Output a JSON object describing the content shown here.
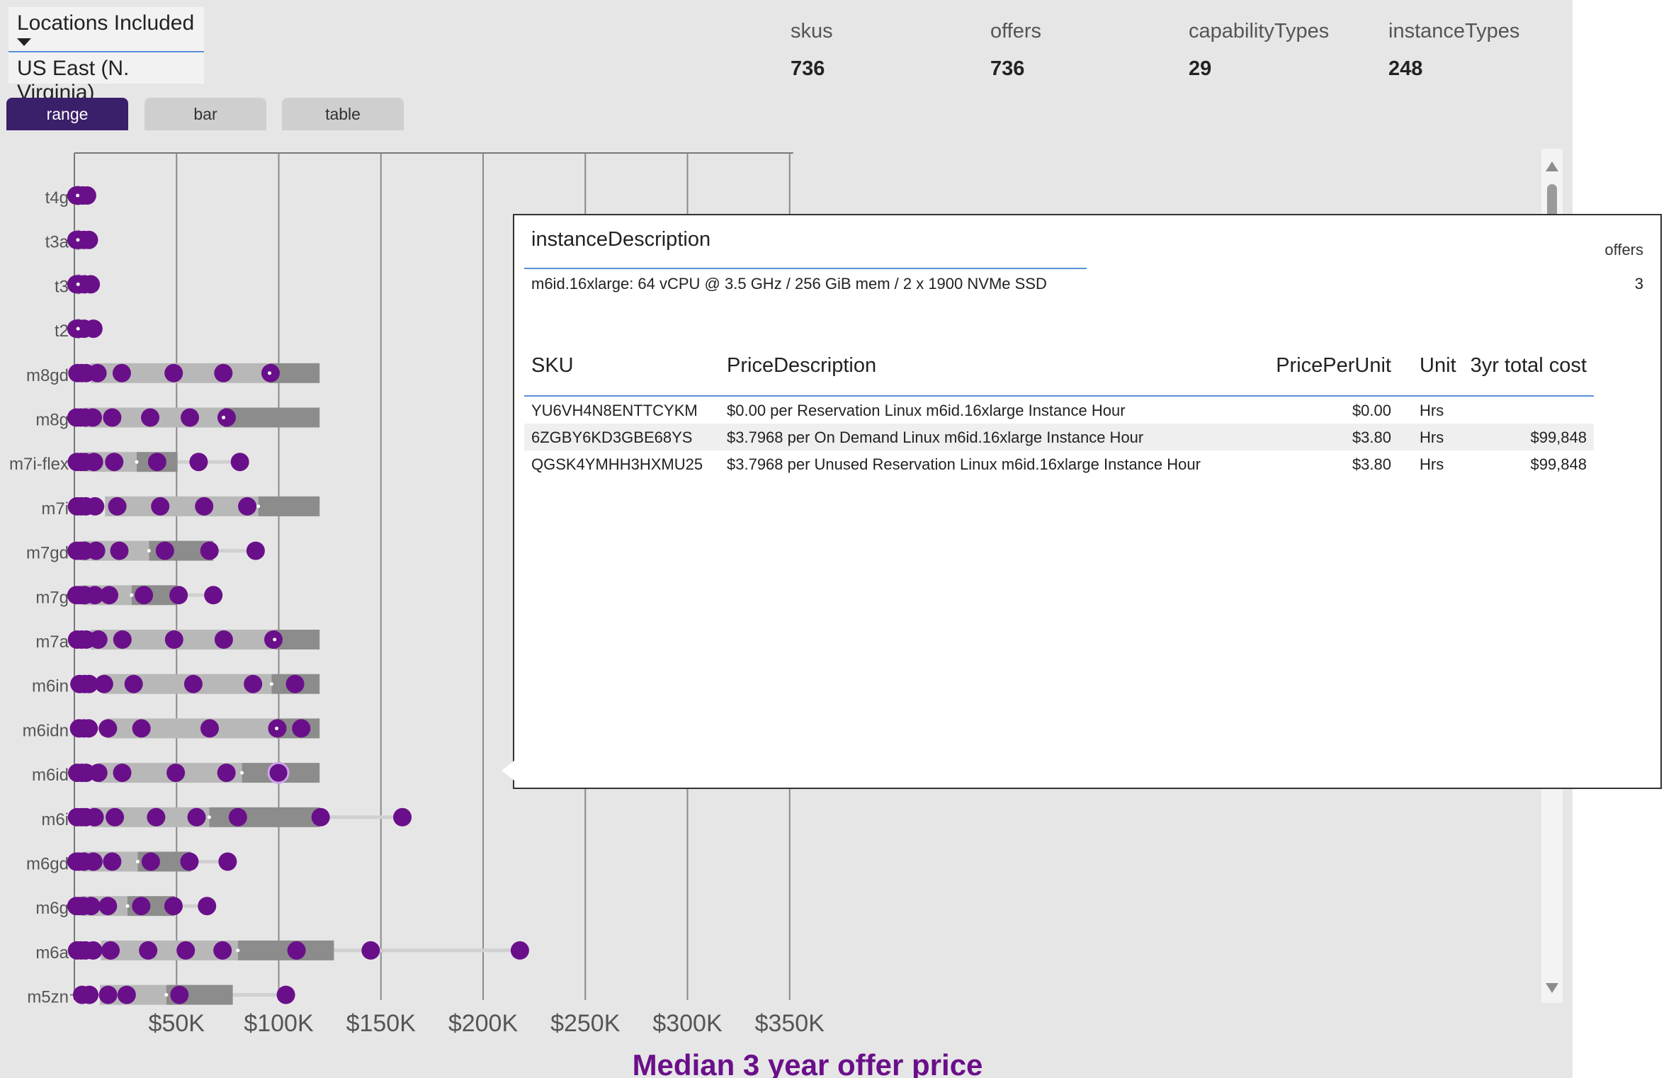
{
  "filter": {
    "title": "Locations Included",
    "value": "US East (N. Virginia)"
  },
  "stats": [
    {
      "label": "skus",
      "value": "736"
    },
    {
      "label": "offers",
      "value": "736"
    },
    {
      "label": "capabilityTypes",
      "value": "29"
    },
    {
      "label": "instanceTypes",
      "value": "248"
    }
  ],
  "tabs": [
    {
      "label": "range",
      "active": true
    },
    {
      "label": "bar",
      "active": false
    },
    {
      "label": "table",
      "active": false
    }
  ],
  "colors": {
    "accent": "#6a0f8a",
    "tab_active": "#3a1f6b",
    "bar_light": "#b8b8b8",
    "bar_dark": "#8c8c8c",
    "rule": "#5b8fd6"
  },
  "chart_data": {
    "type": "range",
    "xlabel": "Median 3 year offer price",
    "xlim": [
      0,
      350000
    ],
    "xticks": [
      {
        "value": 50000,
        "label": "$50K"
      },
      {
        "value": 100000,
        "label": "$100K"
      },
      {
        "value": 150000,
        "label": "$150K"
      },
      {
        "value": 200000,
        "label": "$200K"
      },
      {
        "value": 250000,
        "label": "$250K"
      },
      {
        "value": 300000,
        "label": "$300K"
      },
      {
        "value": 350000,
        "label": "$350K"
      }
    ],
    "series": [
      {
        "name": "t4g",
        "q1": 900,
        "median": 1600,
        "q3": 2300,
        "points": [
          1000,
          2200,
          4100,
          6200
        ]
      },
      {
        "name": "t3a",
        "q1": 900,
        "median": 1700,
        "q3": 2500,
        "points": [
          1000,
          2300,
          4600,
          7100
        ]
      },
      {
        "name": "t3",
        "q1": 900,
        "median": 1800,
        "q3": 2700,
        "points": [
          1000,
          2400,
          4900,
          8000
        ]
      },
      {
        "name": "t2",
        "q1": 900,
        "median": 1800,
        "q3": 2500,
        "points": [
          1000,
          2400,
          4700,
          9300
        ]
      },
      {
        "name": "m8gd",
        "q1": 8000,
        "median": 95500,
        "q3": 120000,
        "points": [
          1500,
          3500,
          5700,
          11300,
          23200,
          48600,
          72900,
          96000
        ]
      },
      {
        "name": "m8g",
        "q1": 5000,
        "median": 73000,
        "q3": 120000,
        "points": [
          1000,
          3000,
          5200,
          9000,
          18500,
          37100,
          56500,
          74500
        ]
      },
      {
        "name": "m7i-flex",
        "q1": 6000,
        "median": 30500,
        "q3": 50500,
        "points": [
          1200,
          3200,
          5000,
          9600,
          19500,
          40500,
          60800,
          81000
        ]
      },
      {
        "name": "m7i",
        "q1": 15000,
        "median": 90000,
        "q3": 120000,
        "points": [
          1300,
          3400,
          5600,
          10100,
          21000,
          42000,
          63500,
          84600
        ]
      },
      {
        "name": "m7gd",
        "q1": 4000,
        "median": 36500,
        "q3": 68000,
        "points": [
          1100,
          3000,
          5000,
          10600,
          22000,
          44300,
          66100,
          88700
        ]
      },
      {
        "name": "m7g",
        "q1": 3500,
        "median": 28000,
        "q3": 50000,
        "points": [
          1000,
          2600,
          5000,
          10000,
          17000,
          34000,
          51000,
          68000
        ]
      },
      {
        "name": "m7a",
        "q1": 8000,
        "median": 98000,
        "q3": 120000,
        "points": [
          1300,
          3500,
          5800,
          11700,
          23500,
          48800,
          73100,
          97400
        ]
      },
      {
        "name": "m6in",
        "q1": 14000,
        "median": 96500,
        "q3": 120000,
        "points": [
          2500,
          5000,
          7200,
          14500,
          29000,
          58200,
          87400,
          108000
        ]
      },
      {
        "name": "m6idn",
        "q1": 16000,
        "median": 99000,
        "q3": 120000,
        "points": [
          2300,
          4600,
          7000,
          16400,
          32800,
          66200,
          99300,
          111000
        ]
      },
      {
        "name": "m6id",
        "q1": 12000,
        "median": 82000,
        "q3": 120000,
        "points": [
          1400,
          3600,
          5700,
          11700,
          23400,
          49600,
          74400,
          99848
        ]
      },
      {
        "name": "m6i",
        "q1": 8000,
        "median": 66000,
        "q3": 120000,
        "points": [
          1300,
          3400,
          5600,
          9900,
          19800,
          40000,
          59800,
          80000,
          120500,
          160500
        ]
      },
      {
        "name": "m6gd",
        "q1": 4000,
        "median": 31000,
        "q3": 57000,
        "points": [
          1000,
          2500,
          4600,
          9300,
          18500,
          37400,
          56300,
          75000
        ]
      },
      {
        "name": "m6g",
        "q1": 3500,
        "median": 26000,
        "q3": 49000,
        "points": [
          1000,
          2600,
          4300,
          8200,
          16400,
          32700,
          48500,
          64900
        ]
      },
      {
        "name": "m6a",
        "q1": 13000,
        "median": 80000,
        "q3": 127000,
        "points": [
          1300,
          3300,
          5500,
          9200,
          17700,
          36100,
          54500,
          72500,
          108700,
          145000,
          218000
        ]
      },
      {
        "name": "m5zn",
        "q1": 12500,
        "median": 45000,
        "q3": 77500,
        "points": [
          3800,
          7300,
          16500,
          25600,
          51400,
          103500
        ]
      }
    ]
  },
  "tooltip": {
    "header": "instanceDescription",
    "value": "m6id.16xlarge: 64 vCPU @ 3.5 GHz / 256 GiB mem / 2 x 1900 NVMe SSD",
    "offers_label": "offers",
    "offers_value": "3",
    "columns": {
      "sku": "SKU",
      "desc": "PriceDescription",
      "ppu": "PricePerUnit",
      "unit": "Unit",
      "cost": "3yr total cost"
    },
    "rows": [
      {
        "sku": "YU6VH4N8ENTTCYKM",
        "desc": "$0.00 per Reservation Linux m6id.16xlarge Instance Hour",
        "ppu": "$0.00",
        "unit": "Hrs",
        "cost": ""
      },
      {
        "sku": "6ZGBY6KD3GBE68YS",
        "desc": "$3.7968 per On Demand Linux m6id.16xlarge Instance Hour",
        "ppu": "$3.80",
        "unit": "Hrs",
        "cost": "$99,848"
      },
      {
        "sku": "QGSK4YMHH3HXMU25",
        "desc": "$3.7968 per Unused Reservation Linux m6id.16xlarge Instance Hour",
        "ppu": "$3.80",
        "unit": "Hrs",
        "cost": "$99,848"
      }
    ]
  }
}
